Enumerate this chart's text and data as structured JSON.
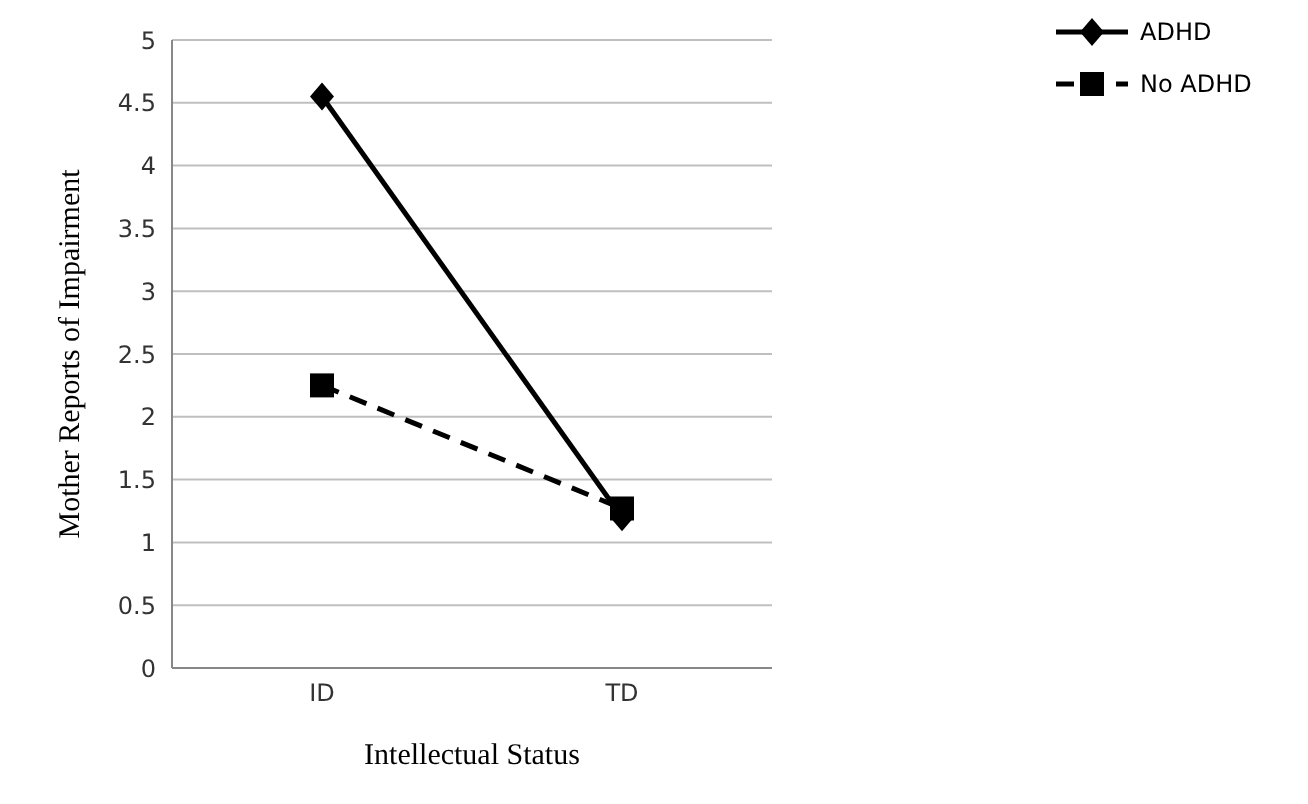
{
  "chart_data": {
    "type": "line",
    "xlabel": "Intellectual Status",
    "ylabel": "Mother Reports of Impairment",
    "categories": [
      "ID",
      "TD"
    ],
    "series": [
      {
        "name": "ADHD",
        "color": "#000000",
        "values": [
          4.55,
          1.2
        ],
        "marker": "diamond",
        "line_style": "solid"
      },
      {
        "name": "No ADHD",
        "color": "#000000",
        "values": [
          2.25,
          1.27
        ],
        "marker": "square",
        "line_style": "dashed"
      }
    ],
    "ylim": [
      0,
      5
    ],
    "yticks": [
      0,
      0.5,
      1,
      1.5,
      2,
      2.5,
      3,
      3.5,
      4,
      4.5,
      5
    ],
    "grid": "y",
    "legend": "top right"
  }
}
